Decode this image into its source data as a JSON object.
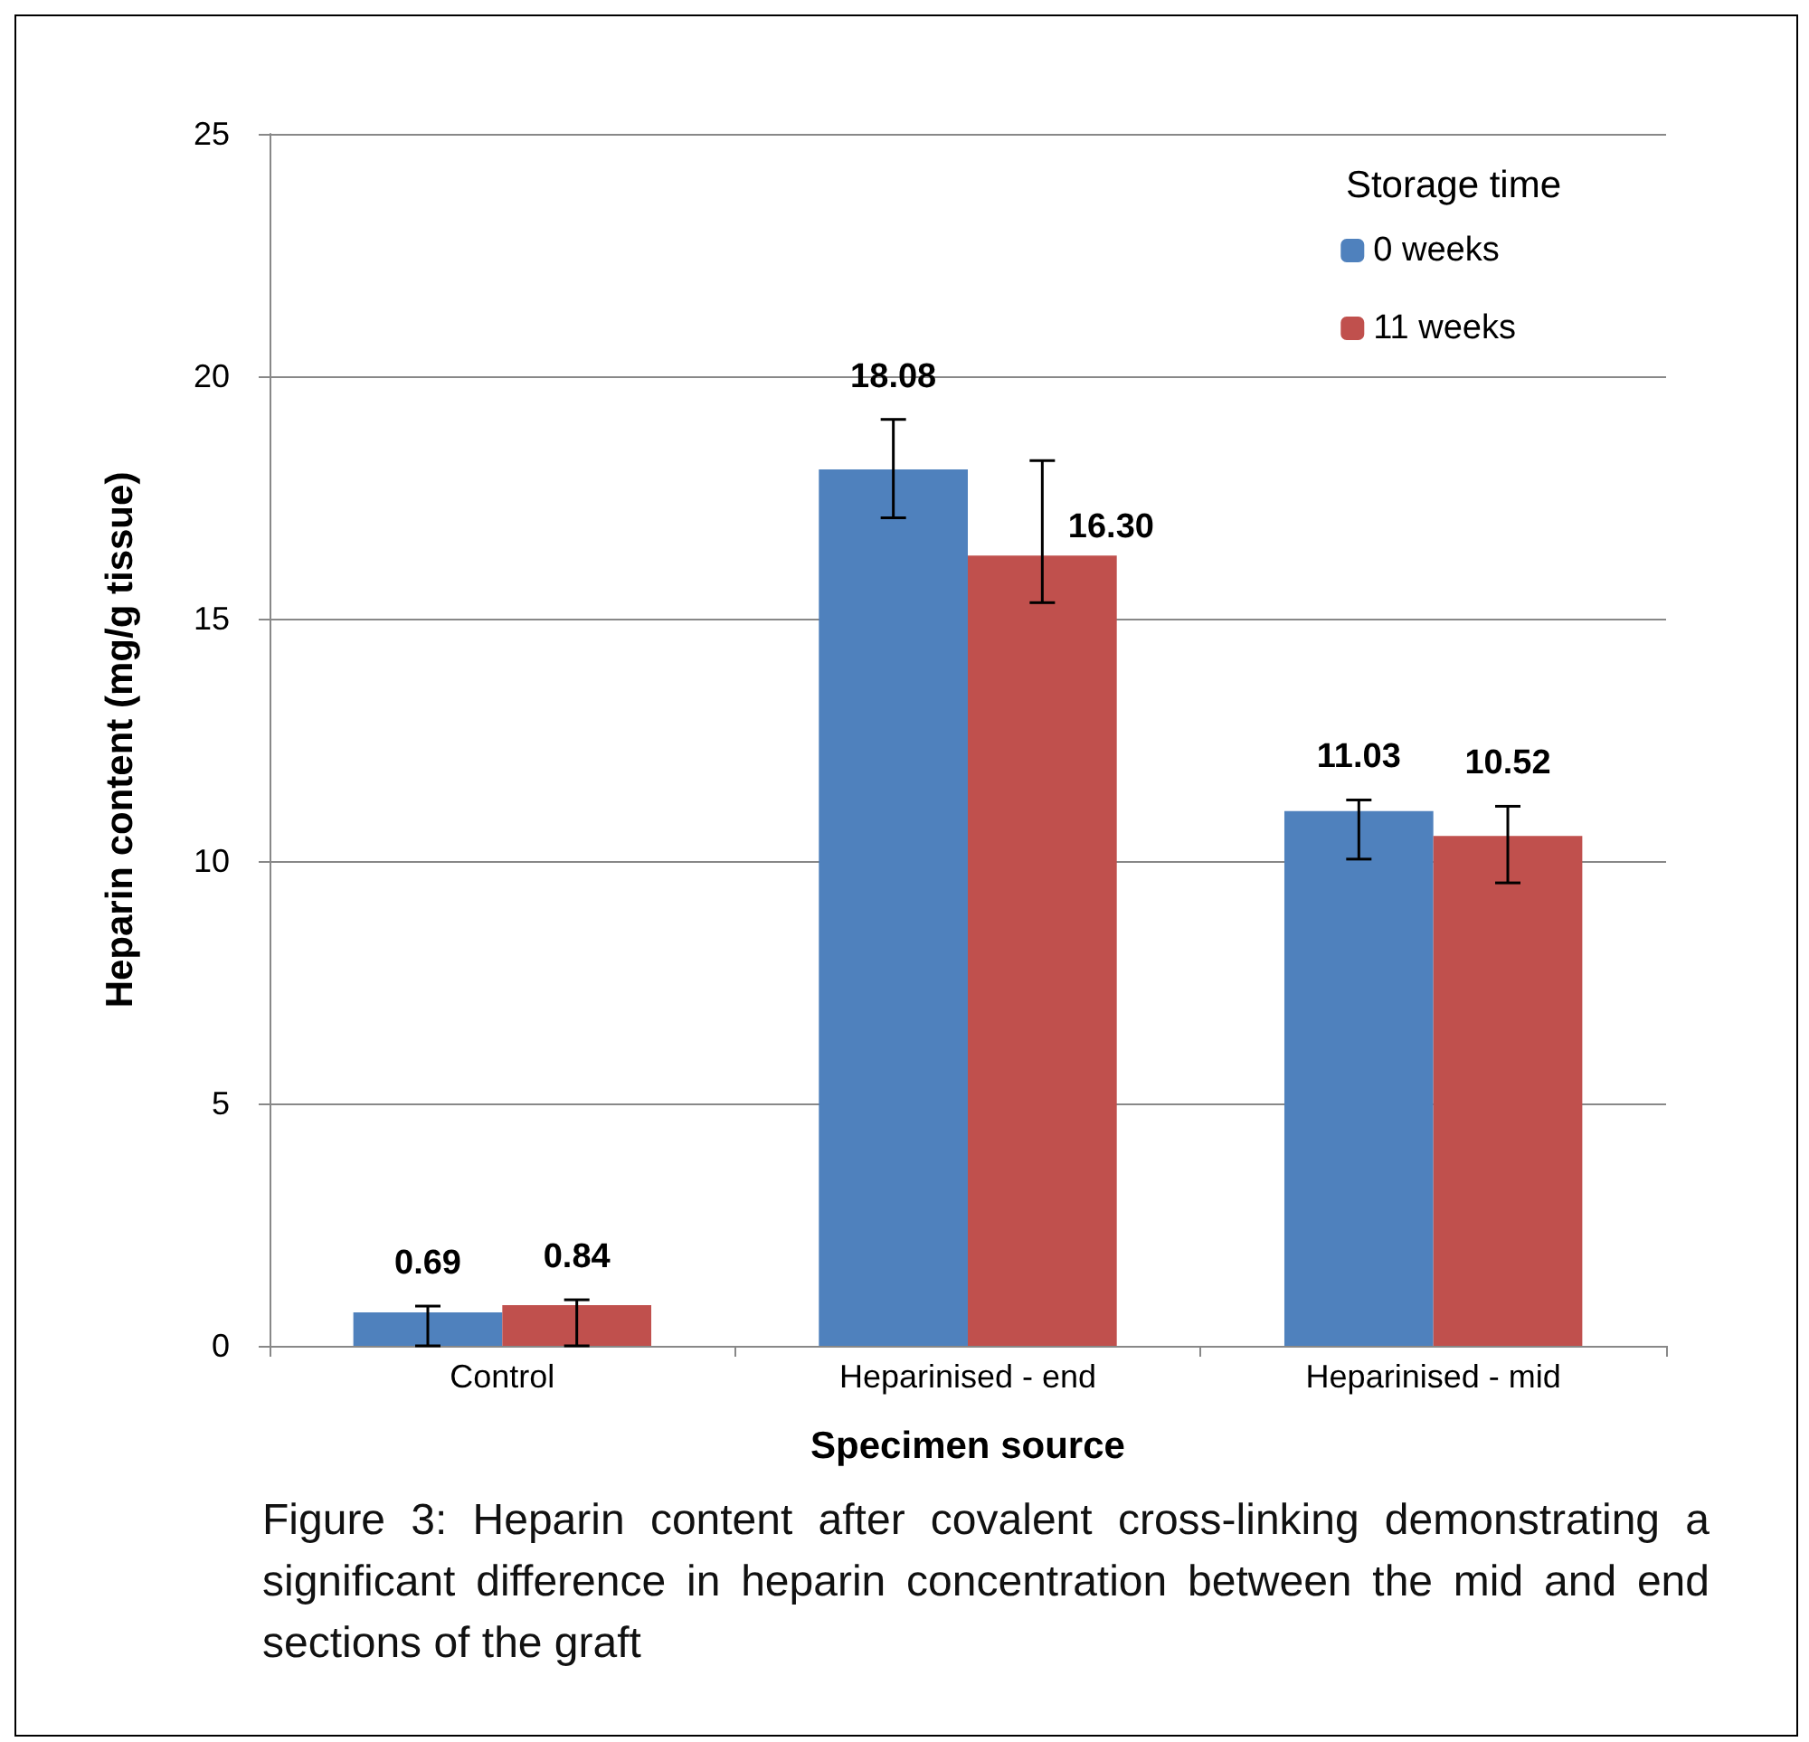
{
  "chart_data": {
    "type": "bar",
    "xlabel": "Specimen source",
    "ylabel": "Heparin content (mg/g tissue)",
    "legend_title": "Storage time",
    "categories": [
      "Control",
      "Heparinised - end",
      "Heparinised - mid"
    ],
    "series": [
      {
        "name": "0 weeks",
        "color": "#4f81bd",
        "values": [
          0.69,
          18.08,
          11.03
        ],
        "errors": [
          [
            0,
            0.82
          ],
          [
            17.08,
            19.11
          ],
          [
            10.04,
            11.26
          ]
        ],
        "value_labels": [
          "0.69",
          "18.08",
          "11.03"
        ]
      },
      {
        "name": "11 weeks",
        "color": "#c0504d",
        "values": [
          0.84,
          16.3,
          10.52
        ],
        "errors": [
          [
            0,
            0.95
          ],
          [
            15.33,
            18.26
          ],
          [
            9.55,
            11.13
          ]
        ],
        "value_labels": [
          "0.84",
          "16.30",
          "10.52"
        ]
      }
    ],
    "ylim": [
      0,
      25
    ],
    "yticks": [
      0,
      5,
      10,
      15,
      20,
      25
    ],
    "grid": "y",
    "legend": "top right",
    "annotations": [
      "Figure 3: Heparin content after covalent cross-linking demonstrating a significant difference in heparin concentration between the mid and end sections of the graft"
    ]
  }
}
